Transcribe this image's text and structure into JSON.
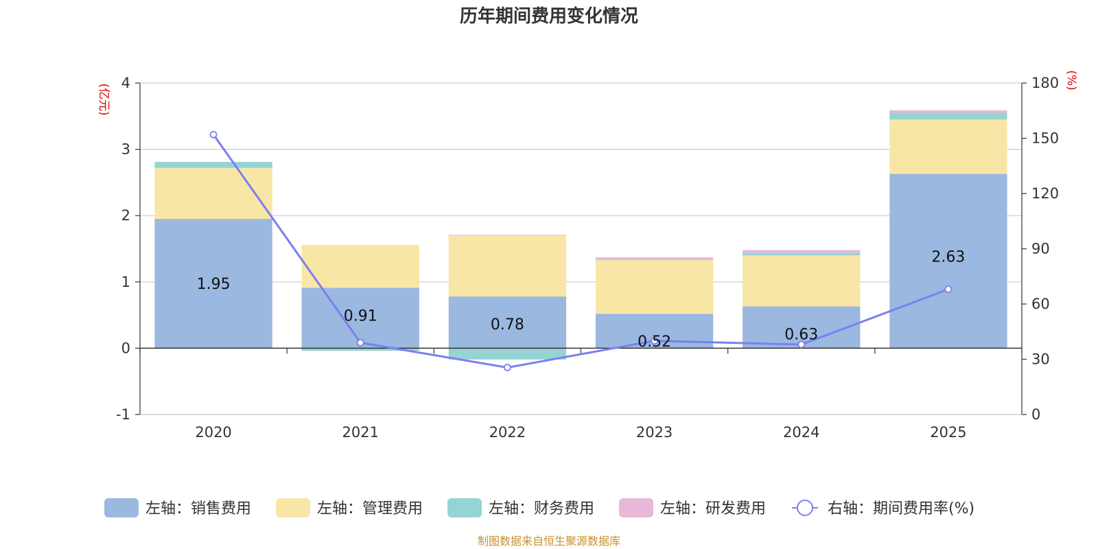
{
  "chart_data": {
    "type": "bar+line",
    "title": "历年期间费用变化情况",
    "categories": [
      "2020",
      "2021",
      "2022",
      "2023",
      "2024",
      "2025"
    ],
    "left_axis": {
      "unit": "(亿元)",
      "ylim": [
        -1,
        4
      ],
      "ticks": [
        "-1",
        "0",
        "1",
        "2",
        "3",
        "4"
      ]
    },
    "right_axis": {
      "unit": "(%)",
      "ylim": [
        0,
        180
      ],
      "ticks": [
        "0",
        "30",
        "60",
        "90",
        "120",
        "150",
        "180"
      ]
    },
    "series": [
      {
        "name": "左轴：销售费用",
        "axis": "left",
        "kind": "bar",
        "color": "#9bb8e0",
        "values": [
          1.95,
          0.91,
          0.78,
          0.52,
          0.63,
          2.63
        ],
        "labels": [
          "1.95",
          "0.91",
          "0.78",
          "0.52",
          "0.63",
          "2.63"
        ]
      },
      {
        "name": "左轴：管理费用",
        "axis": "left",
        "kind": "bar",
        "color": "#f8e6a6",
        "values": [
          0.77,
          0.65,
          0.92,
          0.81,
          0.77,
          0.82
        ]
      },
      {
        "name": "左轴：财务费用",
        "axis": "left",
        "kind": "bar",
        "color": "#96d3d3",
        "values": [
          0.09,
          -0.04,
          -0.17,
          0.01,
          0.04,
          0.1
        ]
      },
      {
        "name": "左轴：研发费用",
        "axis": "left",
        "kind": "bar",
        "color": "#e8b8d9",
        "values": [
          0,
          0,
          0.01,
          0.03,
          0.04,
          0.04
        ]
      },
      {
        "name": "右轴：期间费用率(%)",
        "axis": "right",
        "kind": "line",
        "color": "#7b7ff0",
        "values": [
          152,
          39,
          25.5,
          40,
          38,
          68
        ]
      }
    ],
    "source": "制图数据来自恒生聚源数据库"
  }
}
